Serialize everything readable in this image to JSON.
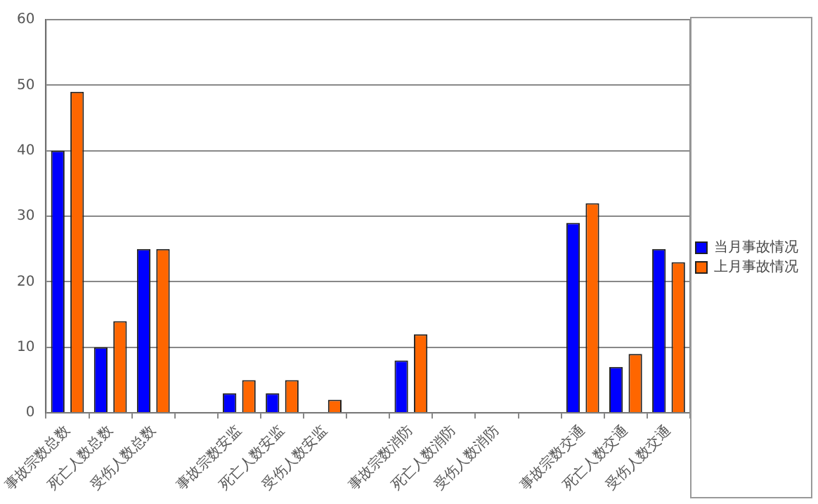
{
  "chart_data": {
    "type": "bar",
    "categories": [
      "事故宗数总数",
      "死亡人数总数",
      "受伤人数总数",
      null,
      "事故宗数安监",
      "死亡人数安监",
      "受伤人数安监",
      null,
      "事故宗数消防",
      "死亡人数消防",
      "受伤人数消防",
      null,
      "事故宗数交通",
      "死亡人数交通",
      "受伤人数交通"
    ],
    "series": [
      {
        "name": "当月事故情况",
        "color": "#0000ff",
        "values": [
          40,
          10,
          25,
          null,
          3,
          3,
          0,
          null,
          8,
          0,
          0,
          null,
          29,
          7,
          25
        ]
      },
      {
        "name": "上月事故情况",
        "color": "#ff6600",
        "values": [
          49,
          14,
          25,
          null,
          5,
          5,
          2,
          null,
          12,
          0,
          0,
          null,
          32,
          9,
          23
        ]
      }
    ],
    "ylim": [
      0,
      60
    ],
    "yticks": [
      0,
      10,
      20,
      30,
      40,
      50,
      60
    ],
    "grid": "y",
    "legend": "right"
  }
}
